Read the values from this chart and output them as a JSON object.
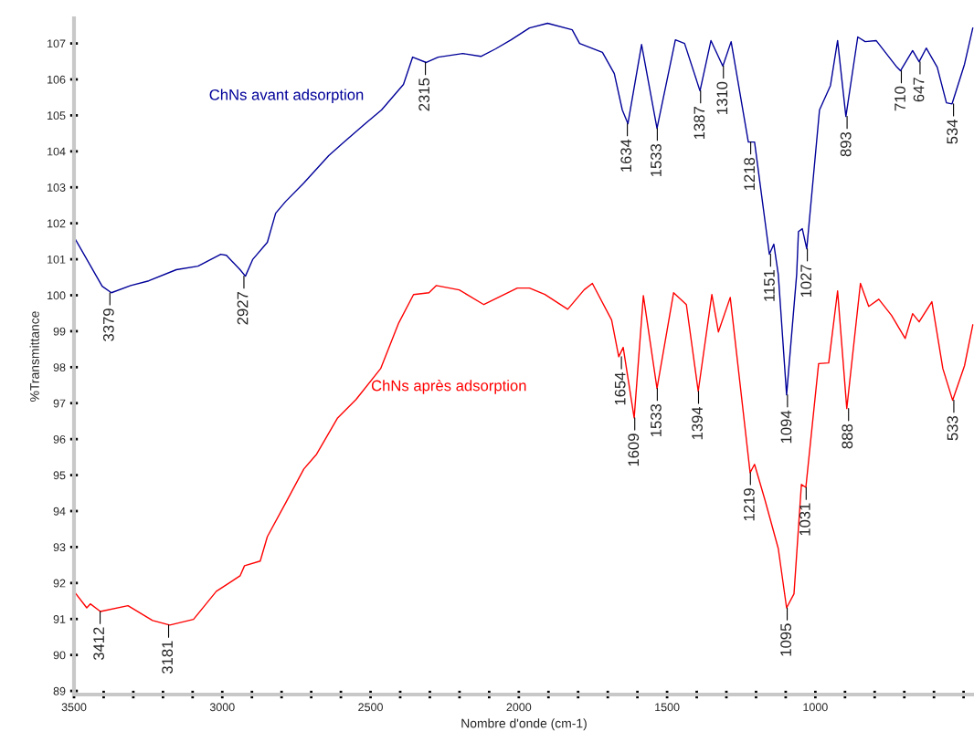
{
  "chart_data": {
    "type": "line",
    "xlabel": "Nombre d'onde (cm-1)",
    "ylabel": "%Transmittance",
    "xlim": [
      3500,
      465
    ],
    "ylim": [
      88.9,
      107.7
    ],
    "xticks": [
      3500,
      {
        "value": 3400,
        "label": null
      },
      {
        "value": 3300,
        "label": null
      },
      {
        "value": 3200,
        "label": null
      },
      {
        "value": 3100,
        "label": null
      },
      3000,
      {
        "value": 2900,
        "label": null
      },
      {
        "value": 2800,
        "label": null
      },
      {
        "value": 2700,
        "label": null
      },
      {
        "value": 2600,
        "label": null
      },
      2500,
      {
        "value": 2400,
        "label": null
      },
      {
        "value": 2300,
        "label": null
      },
      {
        "value": 2200,
        "label": null
      },
      {
        "value": 2100,
        "label": null
      },
      2000,
      {
        "value": 1900,
        "label": null
      },
      {
        "value": 1800,
        "label": null
      },
      {
        "value": 1700,
        "label": null
      },
      {
        "value": 1600,
        "label": null
      },
      1500,
      {
        "value": 1400,
        "label": null
      },
      {
        "value": 1300,
        "label": null
      },
      {
        "value": 1200,
        "label": null
      },
      {
        "value": 1100,
        "label": null
      },
      1000,
      {
        "value": 900,
        "label": null
      },
      {
        "value": 800,
        "label": null
      },
      {
        "value": 700,
        "label": null
      },
      {
        "value": 600,
        "label": null
      },
      {
        "value": 500,
        "label": null
      }
    ],
    "yticks": [
      89,
      90,
      91,
      92,
      93,
      94,
      95,
      96,
      97,
      98,
      99,
      100,
      101,
      102,
      103,
      104,
      105,
      106,
      107
    ],
    "grid": false,
    "legend": false,
    "marker": "none",
    "line_style": "solid",
    "series": [
      {
        "name": "ChNs avant adsorption",
        "color": "#000099",
        "x": [
          3500,
          3405,
          3374,
          3309,
          3248,
          3155,
          3082,
          3005,
          2986,
          2940,
          2922,
          2897,
          2848,
          2820,
          2786,
          2725,
          2641,
          2589,
          2518,
          2463,
          2389,
          2358,
          2312,
          2272,
          2189,
          2128,
          2078,
          2026,
          1964,
          1903,
          1820,
          1795,
          1718,
          1678,
          1651,
          1632,
          1586,
          1534,
          1472,
          1441,
          1389,
          1352,
          1312,
          1284,
          1226,
          1205,
          1155,
          1140,
          1125,
          1097,
          1063,
          1057,
          1044,
          1029,
          986,
          949,
          925,
          897,
          857,
          832,
          795,
          725,
          713,
          672,
          650,
          626,
          589,
          558,
          539,
          497,
          469
        ],
        "values": [
          101.62,
          100.25,
          100.07,
          100.27,
          100.4,
          100.71,
          100.81,
          101.14,
          101.11,
          100.71,
          100.53,
          101.0,
          101.47,
          102.28,
          102.61,
          103.12,
          103.88,
          104.26,
          104.77,
          105.15,
          105.86,
          106.62,
          106.47,
          106.62,
          106.72,
          106.64,
          106.85,
          107.1,
          107.43,
          107.56,
          107.38,
          107.0,
          106.75,
          106.16,
          105.15,
          104.77,
          106.97,
          104.64,
          107.1,
          107.0,
          105.68,
          107.08,
          106.37,
          107.05,
          104.26,
          104.26,
          101.14,
          101.42,
          100.58,
          97.23,
          100.58,
          101.77,
          101.85,
          101.29,
          105.15,
          105.83,
          107.08,
          104.97,
          107.18,
          107.05,
          107.08,
          106.34,
          106.24,
          106.8,
          106.49,
          106.87,
          106.34,
          105.35,
          105.32,
          106.42,
          107.43
        ]
      },
      {
        "name": "ChNs après adsorption",
        "color": "#ff0000",
        "x": [
          3500,
          3457,
          3445,
          3411,
          3318,
          3235,
          3177,
          3097,
          3020,
          2940,
          2925,
          2872,
          2848,
          2786,
          2725,
          2682,
          2611,
          2549,
          2466,
          2405,
          2355,
          2303,
          2278,
          2201,
          2118,
          2005,
          1964,
          1912,
          1835,
          1780,
          1752,
          1687,
          1663,
          1648,
          1611,
          1580,
          1534,
          1478,
          1435,
          1395,
          1349,
          1327,
          1287,
          1220,
          1205,
          1170,
          1125,
          1097,
          1072,
          1047,
          1032,
          989,
          955,
          925,
          894,
          848,
          820,
          786,
          743,
          697,
          672,
          650,
          607,
          570,
          537,
          497,
          469
        ],
        "values": [
          91.77,
          91.31,
          91.42,
          91.21,
          91.37,
          90.96,
          90.83,
          90.99,
          91.77,
          92.2,
          92.48,
          92.61,
          93.29,
          94.23,
          95.17,
          95.58,
          96.59,
          97.1,
          97.96,
          99.23,
          100.02,
          100.07,
          100.27,
          100.15,
          99.74,
          100.2,
          100.2,
          100.02,
          99.61,
          100.15,
          100.33,
          99.31,
          98.29,
          98.55,
          96.59,
          99.99,
          97.41,
          100.07,
          99.74,
          97.33,
          100.02,
          98.98,
          99.94,
          95.07,
          95.3,
          94.31,
          92.96,
          91.31,
          91.7,
          94.74,
          94.66,
          98.1,
          98.12,
          100.12,
          96.85,
          100.33,
          99.69,
          99.89,
          99.44,
          98.8,
          99.49,
          99.26,
          99.82,
          97.96,
          97.08,
          98.04,
          99.18
        ]
      }
    ],
    "annotations": [
      {
        "text": "3379",
        "x": 3379,
        "y": 100.07
      },
      {
        "text": "2927",
        "x": 2927,
        "y": 100.53
      },
      {
        "text": "2315",
        "x": 2315,
        "y": 106.47
      },
      {
        "text": "1634",
        "x": 1634,
        "y": 104.77
      },
      {
        "text": "1533",
        "x": 1533,
        "y": 104.64
      },
      {
        "text": "1387",
        "x": 1387,
        "y": 105.68
      },
      {
        "text": "1310",
        "x": 1310,
        "y": 106.37
      },
      {
        "text": "1218",
        "x": 1218,
        "y": 104.26
      },
      {
        "text": "1151",
        "x": 1151,
        "y": 101.14
      },
      {
        "text": "1094",
        "x": 1094,
        "y": 97.23
      },
      {
        "text": "1027",
        "x": 1027,
        "y": 101.29
      },
      {
        "text": "893",
        "x": 893,
        "y": 104.97
      },
      {
        "text": "710",
        "x": 710,
        "y": 106.24
      },
      {
        "text": "647",
        "x": 647,
        "y": 106.49
      },
      {
        "text": "534",
        "x": 534,
        "y": 105.32
      },
      {
        "text": "3412",
        "x": 3412,
        "y": 91.21
      },
      {
        "text": "3181",
        "x": 3181,
        "y": 90.83
      },
      {
        "text": "1654",
        "x": 1654,
        "y": 98.29
      },
      {
        "text": "1609",
        "x": 1609,
        "y": 96.59
      },
      {
        "text": "1533",
        "x": 1533,
        "y": 97.41
      },
      {
        "text": "1394",
        "x": 1394,
        "y": 97.33
      },
      {
        "text": "1219",
        "x": 1219,
        "y": 95.07
      },
      {
        "text": "1095",
        "x": 1095,
        "y": 91.31
      },
      {
        "text": "1031",
        "x": 1031,
        "y": 94.66
      },
      {
        "text": "888",
        "x": 888,
        "y": 96.85
      },
      {
        "text": "533",
        "x": 533,
        "y": 97.08
      }
    ]
  }
}
